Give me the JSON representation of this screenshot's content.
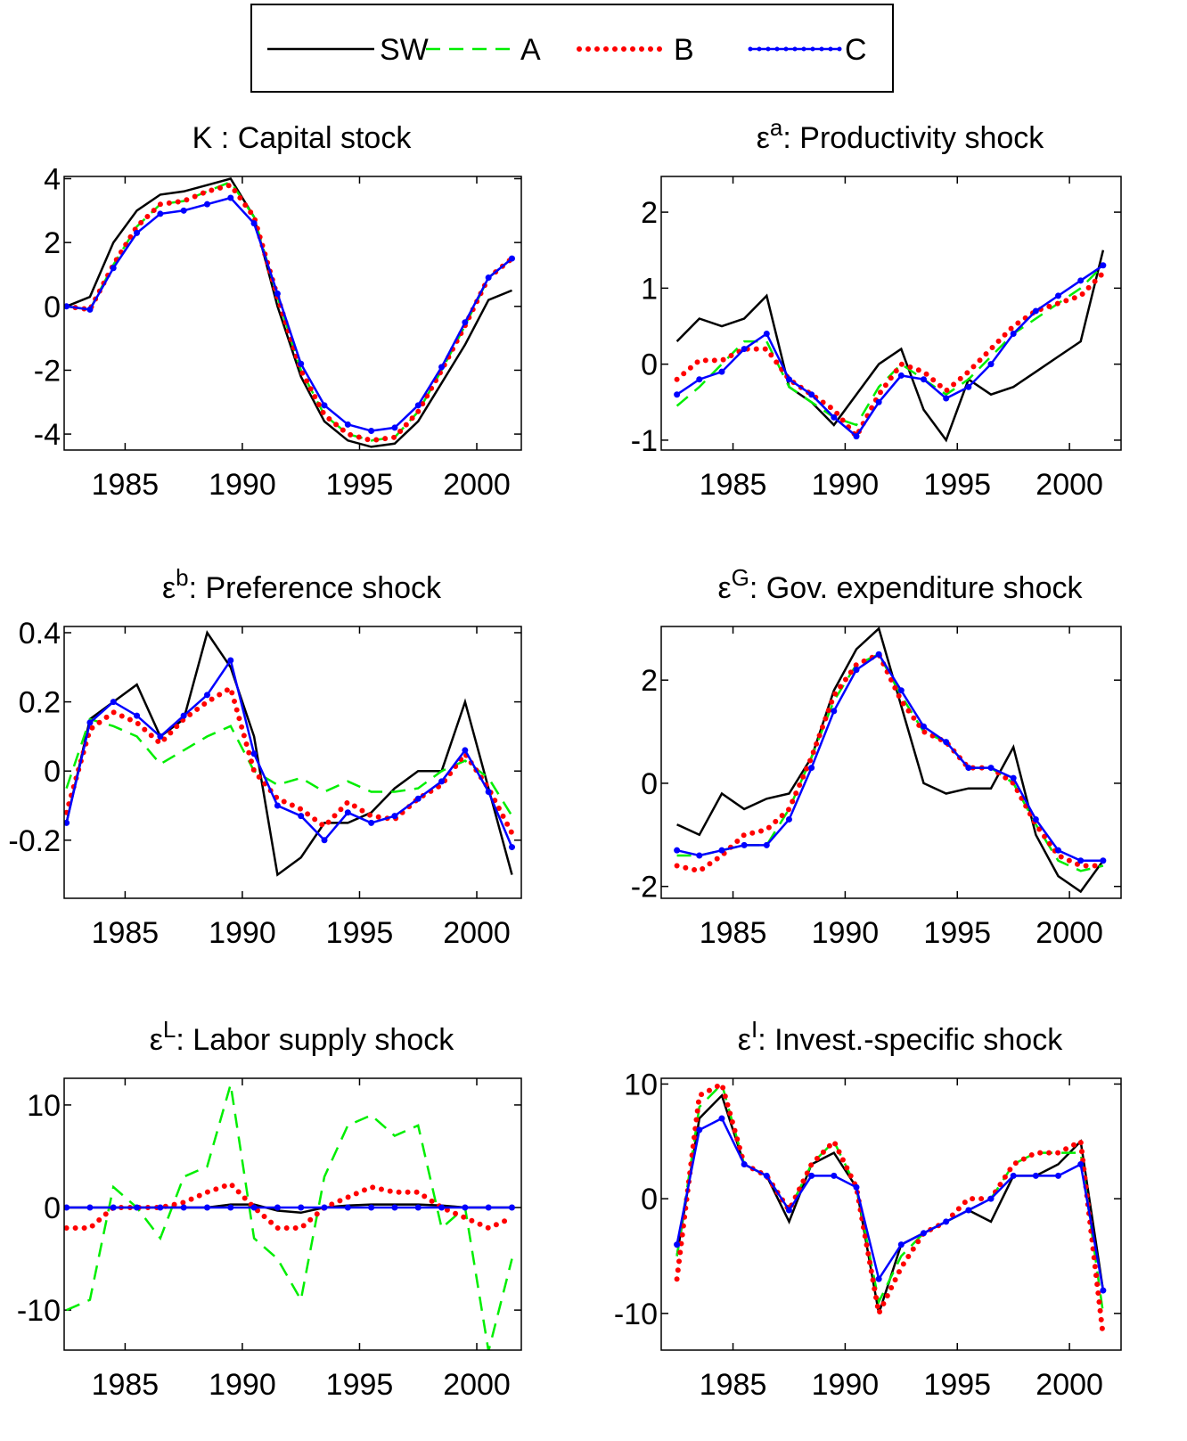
{
  "legend": [
    {
      "name": "SW",
      "color": "#000000",
      "style": "solid"
    },
    {
      "name": "A",
      "color": "#00ee00",
      "style": "dashed"
    },
    {
      "name": "B",
      "color": "#ff0000",
      "style": "dotted"
    },
    {
      "name": "C",
      "color": "#0000ff",
      "style": "line-dot"
    }
  ],
  "chart_data": [
    {
      "type": "line",
      "title": "K : Capital stock",
      "x": [
        1982.5,
        1983.5,
        1984.5,
        1985.5,
        1986.5,
        1987.5,
        1988.5,
        1989.5,
        1990.5,
        1991.5,
        1992.5,
        1993.5,
        1994.5,
        1995.5,
        1996.5,
        1997.5,
        1998.5,
        1999.5,
        2000.5,
        2001.5
      ],
      "xlim": [
        1982.4,
        2001.9
      ],
      "xticks": [
        1985,
        1990,
        1995,
        2000
      ],
      "ylim": [
        -4.5,
        4.07
      ],
      "yticks": [
        -4,
        -2,
        0,
        2,
        4
      ],
      "series": [
        {
          "values": [
            0.0,
            0.3,
            2.0,
            3.0,
            3.5,
            3.6,
            3.8,
            4.0,
            2.8,
            0.0,
            -2.2,
            -3.6,
            -4.2,
            -4.4,
            -4.3,
            -3.6,
            -2.4,
            -1.2,
            0.2,
            0.5
          ]
        },
        {
          "values": [
            0.0,
            -0.1,
            1.3,
            2.5,
            3.2,
            3.3,
            3.6,
            3.9,
            2.8,
            0.3,
            -2.0,
            -3.4,
            -4.0,
            -4.2,
            -4.1,
            -3.3,
            -2.0,
            -0.6,
            0.9,
            1.5
          ]
        },
        {
          "values": [
            0.0,
            -0.1,
            1.3,
            2.5,
            3.2,
            3.3,
            3.6,
            3.8,
            2.8,
            0.3,
            -2.0,
            -3.4,
            -4.0,
            -4.2,
            -4.1,
            -3.3,
            -2.0,
            -0.6,
            0.9,
            1.5
          ]
        },
        {
          "values": [
            0.0,
            -0.1,
            1.2,
            2.3,
            2.9,
            3.0,
            3.2,
            3.4,
            2.6,
            0.4,
            -1.8,
            -3.1,
            -3.7,
            -3.9,
            -3.8,
            -3.1,
            -1.9,
            -0.5,
            0.9,
            1.5
          ]
        }
      ]
    },
    {
      "type": "line",
      "symbol": "ε",
      "superscript": "a",
      "title": ": Productivity shock",
      "x": [
        1982.5,
        1983.5,
        1984.5,
        1985.5,
        1986.5,
        1987.5,
        1988.5,
        1989.5,
        1990.5,
        1991.5,
        1992.5,
        1993.5,
        1994.5,
        1995.5,
        1996.5,
        1997.5,
        1998.5,
        1999.5,
        2000.5,
        2001.5
      ],
      "xlim": [
        1981.8,
        2002.3
      ],
      "xticks": [
        1985,
        1990,
        1995,
        2000
      ],
      "ylim": [
        -1.13,
        2.47
      ],
      "yticks": [
        -1,
        0,
        1,
        2
      ],
      "series": [
        {
          "values": [
            0.3,
            0.6,
            0.5,
            0.6,
            0.9,
            -0.3,
            -0.5,
            -0.8,
            -0.4,
            0.0,
            0.2,
            -0.6,
            -1.0,
            -0.2,
            -0.4,
            -0.3,
            -0.1,
            0.1,
            0.3,
            1.5
          ]
        },
        {
          "values": [
            -0.55,
            -0.3,
            0.0,
            0.3,
            0.3,
            -0.3,
            -0.5,
            -0.7,
            -0.8,
            -0.3,
            0.0,
            -0.2,
            -0.4,
            -0.2,
            0.1,
            0.4,
            0.6,
            0.8,
            1.0,
            1.3
          ]
        },
        {
          "values": [
            -0.2,
            0.05,
            0.05,
            0.2,
            0.2,
            -0.2,
            -0.4,
            -0.6,
            -0.95,
            -0.4,
            0.0,
            -0.1,
            -0.35,
            -0.1,
            0.2,
            0.5,
            0.7,
            0.8,
            0.9,
            1.2
          ]
        },
        {
          "values": [
            -0.4,
            -0.2,
            -0.1,
            0.2,
            0.4,
            -0.2,
            -0.4,
            -0.7,
            -0.95,
            -0.5,
            -0.15,
            -0.2,
            -0.45,
            -0.3,
            0.0,
            0.4,
            0.7,
            0.9,
            1.1,
            1.3
          ]
        }
      ]
    },
    {
      "type": "line",
      "symbol": "ε",
      "superscript": "b",
      "title": ": Preference shock",
      "x": [
        1982.5,
        1983.5,
        1984.5,
        1985.5,
        1986.5,
        1987.5,
        1988.5,
        1989.5,
        1990.5,
        1991.5,
        1992.5,
        1993.5,
        1994.5,
        1995.5,
        1996.5,
        1997.5,
        1998.5,
        1999.5,
        2000.5,
        2001.5
      ],
      "xlim": [
        1982.4,
        2001.9
      ],
      "xticks": [
        1985,
        1990,
        1995,
        2000
      ],
      "ylim": [
        -0.368,
        0.418
      ],
      "yticks": [
        -0.2,
        0,
        0.2,
        0.4
      ],
      "series": [
        {
          "values": [
            -0.15,
            0.15,
            0.2,
            0.25,
            0.1,
            0.15,
            0.4,
            0.3,
            0.1,
            -0.3,
            -0.25,
            -0.15,
            -0.15,
            -0.12,
            -0.05,
            0.0,
            0.0,
            0.2,
            -0.05,
            -0.3
          ]
        },
        {
          "values": [
            -0.05,
            0.15,
            0.13,
            0.1,
            0.02,
            0.06,
            0.1,
            0.13,
            0.0,
            -0.04,
            -0.02,
            -0.06,
            -0.03,
            -0.06,
            -0.06,
            -0.05,
            0.0,
            0.03,
            -0.02,
            -0.13
          ]
        },
        {
          "values": [
            -0.12,
            0.12,
            0.17,
            0.14,
            0.08,
            0.15,
            0.2,
            0.24,
            0.0,
            -0.08,
            -0.11,
            -0.16,
            -0.09,
            -0.13,
            -0.14,
            -0.08,
            -0.04,
            0.05,
            -0.05,
            -0.18
          ]
        },
        {
          "values": [
            -0.15,
            0.14,
            0.2,
            0.16,
            0.1,
            0.16,
            0.22,
            0.32,
            0.05,
            -0.1,
            -0.13,
            -0.2,
            -0.12,
            -0.15,
            -0.13,
            -0.08,
            -0.03,
            0.06,
            -0.06,
            -0.22
          ]
        }
      ]
    },
    {
      "type": "line",
      "symbol": "ε",
      "superscript": "G",
      "title": ": Gov. expenditure shock",
      "x": [
        1982.5,
        1983.5,
        1984.5,
        1985.5,
        1986.5,
        1987.5,
        1988.5,
        1989.5,
        1990.5,
        1991.5,
        1992.5,
        1993.5,
        1994.5,
        1995.5,
        1996.5,
        1997.5,
        1998.5,
        1999.5,
        2000.5,
        2001.5
      ],
      "xlim": [
        1981.8,
        2002.3
      ],
      "xticks": [
        1985,
        1990,
        1995,
        2000
      ],
      "ylim": [
        -2.23,
        3.04
      ],
      "yticks": [
        -2,
        0,
        2
      ],
      "series": [
        {
          "values": [
            -0.8,
            -1.0,
            -0.2,
            -0.5,
            -0.3,
            -0.2,
            0.5,
            1.8,
            2.6,
            3.0,
            1.5,
            0.0,
            -0.2,
            -0.1,
            -0.1,
            0.7,
            -1.0,
            -1.8,
            -2.1,
            -1.5
          ]
        },
        {
          "values": [
            -1.4,
            -1.4,
            -1.3,
            -1.2,
            -1.2,
            -0.5,
            0.5,
            1.6,
            2.3,
            2.5,
            1.7,
            1.0,
            0.8,
            0.3,
            0.3,
            0.0,
            -0.8,
            -1.5,
            -1.7,
            -1.6
          ]
        },
        {
          "values": [
            -1.6,
            -1.7,
            -1.4,
            -1.0,
            -0.9,
            -0.5,
            0.5,
            1.7,
            2.3,
            2.5,
            1.6,
            1.0,
            0.8,
            0.3,
            0.3,
            0.0,
            -0.8,
            -1.4,
            -1.6,
            -1.6
          ]
        },
        {
          "values": [
            -1.3,
            -1.4,
            -1.3,
            -1.2,
            -1.2,
            -0.7,
            0.3,
            1.4,
            2.2,
            2.5,
            1.8,
            1.1,
            0.8,
            0.3,
            0.3,
            0.1,
            -0.7,
            -1.3,
            -1.5,
            -1.5
          ]
        }
      ]
    },
    {
      "type": "line",
      "symbol": "ε",
      "superscript": "L",
      "title": ": Labor supply shock",
      "x": [
        1982.5,
        1983.5,
        1984.5,
        1985.5,
        1986.5,
        1987.5,
        1988.5,
        1989.5,
        1990.5,
        1991.5,
        1992.5,
        1993.5,
        1994.5,
        1995.5,
        1996.5,
        1997.5,
        1998.5,
        1999.5,
        2000.5,
        2001.5
      ],
      "xlim": [
        1982.4,
        2001.9
      ],
      "xticks": [
        1985,
        1990,
        1995,
        2000
      ],
      "ylim": [
        -13.9,
        12.6
      ],
      "yticks": [
        -10,
        0,
        10
      ],
      "series": [
        {
          "values": [
            0,
            0,
            0,
            0,
            0,
            0,
            0,
            0.3,
            0.3,
            -0.3,
            -0.5,
            0,
            0.2,
            0.3,
            0.3,
            0.3,
            0.2,
            0,
            0,
            0
          ]
        },
        {
          "values": [
            -10,
            -9,
            2,
            0,
            -3,
            3,
            4,
            12,
            -3,
            -5,
            -9,
            3,
            8,
            9,
            7,
            8,
            -2,
            0,
            -14,
            -5
          ]
        },
        {
          "values": [
            -2,
            -2,
            0,
            0,
            0,
            0.5,
            1.5,
            2.3,
            0,
            -2,
            -2,
            0,
            1,
            2,
            1.5,
            1.5,
            0,
            -1,
            -2,
            -1
          ]
        },
        {
          "values": [
            0,
            0,
            0,
            0,
            0,
            0,
            0,
            0,
            0,
            0,
            0,
            0,
            0,
            0,
            0,
            0,
            0,
            0,
            0,
            0
          ]
        }
      ]
    },
    {
      "type": "line",
      "symbol": "ε",
      "superscript": "I",
      "title": ": Invest.-specific shock",
      "x": [
        1982.5,
        1983.5,
        1984.5,
        1985.5,
        1986.5,
        1987.5,
        1988.5,
        1989.5,
        1990.5,
        1991.5,
        1992.5,
        1993.5,
        1994.5,
        1995.5,
        1996.5,
        1997.5,
        1998.5,
        1999.5,
        2000.5,
        2001.5
      ],
      "xlim": [
        1981.8,
        2002.3
      ],
      "xticks": [
        1985,
        1990,
        1995,
        2000
      ],
      "ylim": [
        -13.2,
        10.5
      ],
      "yticks": [
        -10,
        0,
        10
      ],
      "series": [
        {
          "values": [
            -5,
            7,
            9,
            3,
            2,
            -2,
            3,
            4,
            1,
            -10,
            -4,
            -3,
            -2,
            -1,
            -2,
            2,
            2,
            3,
            5,
            -8
          ]
        },
        {
          "values": [
            -5,
            8,
            10,
            3,
            2,
            -1,
            3,
            5,
            1,
            -9,
            -5,
            -3,
            -2,
            -1,
            0,
            3,
            4,
            4,
            4,
            -10
          ]
        },
        {
          "values": [
            -7,
            9,
            10,
            3,
            2,
            -1,
            3,
            5,
            1,
            -10,
            -6,
            -3,
            -2,
            0,
            0,
            3,
            4,
            4,
            5,
            -12
          ]
        },
        {
          "values": [
            -4,
            6,
            7,
            3,
            2,
            -1,
            2,
            2,
            1,
            -7,
            -4,
            -3,
            -2,
            -1,
            0,
            2,
            2,
            2,
            3,
            -8
          ]
        }
      ]
    }
  ]
}
